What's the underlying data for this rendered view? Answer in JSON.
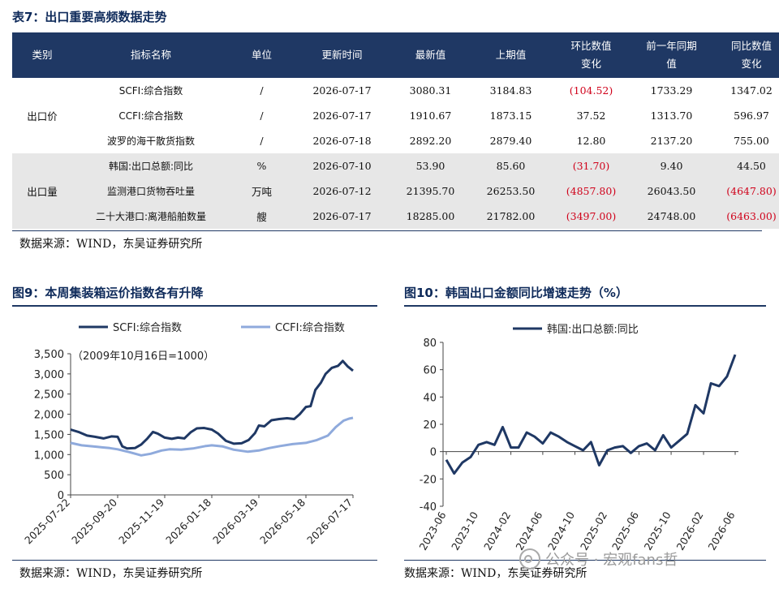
{
  "table7": {
    "title": "表7：出口重要高频数据走势",
    "headers": [
      "类别",
      "指标名称",
      "单位",
      "更新时间",
      "最新值",
      "上期值",
      "环比数值\n变化",
      "前一年同期\n值",
      "同比数值\n变化"
    ],
    "groups": [
      {
        "category": "出口价",
        "rows": [
          {
            "name": "SCFI:综合指数",
            "unit": "/",
            "date": "2026-07-17",
            "latest": "3080.31",
            "prev": "3184.83",
            "mom": "(104.52)",
            "mom_neg": true,
            "year_ago": "1733.29",
            "yoy": "1347.02",
            "yoy_neg": false
          },
          {
            "name": "CCFI:综合指数",
            "unit": "/",
            "date": "2026-07-17",
            "latest": "1910.67",
            "prev": "1873.15",
            "mom": "37.52",
            "mom_neg": false,
            "year_ago": "1313.70",
            "yoy": "596.97",
            "yoy_neg": false
          },
          {
            "name": "波罗的海干散货指数",
            "unit": "/",
            "date": "2026-07-18",
            "latest": "2892.20",
            "prev": "2879.40",
            "mom": "12.80",
            "mom_neg": false,
            "year_ago": "2137.20",
            "yoy": "755.00",
            "yoy_neg": false
          }
        ]
      },
      {
        "category": "出口量",
        "rows": [
          {
            "name": "韩国:出口总额:同比",
            "unit": "%",
            "date": "2026-07-10",
            "latest": "53.90",
            "prev": "85.60",
            "mom": "(31.70)",
            "mom_neg": true,
            "year_ago": "9.40",
            "yoy": "44.50",
            "yoy_neg": false
          },
          {
            "name": "监测港口货物吞吐量",
            "unit": "万吨",
            "date": "2026-07-12",
            "latest": "21395.70",
            "prev": "26253.50",
            "mom": "(4857.80)",
            "mom_neg": true,
            "year_ago": "26043.50",
            "yoy": "(4647.80)",
            "yoy_neg": true
          },
          {
            "name": "二十大港口:离港船舶数量",
            "unit": "艘",
            "date": "2026-07-17",
            "latest": "18285.00",
            "prev": "21782.00",
            "mom": "(3497.00)",
            "mom_neg": true,
            "year_ago": "24748.00",
            "yoy": "(6463.00)",
            "yoy_neg": true
          }
        ]
      }
    ],
    "source": "数据来源：WIND，东吴证券研究所"
  },
  "fig9": {
    "title": "图9：本周集装箱运价指数各有升降",
    "source": "数据来源：WIND，东吴证券研究所"
  },
  "fig10": {
    "title": "图10：韩国出口金额同比增速走势（%）",
    "source": "数据来源：WIND，东吴证券研究所"
  },
  "watermark": "公众号 · 宏观fans哲",
  "colors": {
    "header_bg": "#1f3864",
    "scfi": "#1f3864",
    "ccfi": "#8faadc",
    "negative": "#d0021b",
    "grey_band": "#e7e7e7"
  },
  "chart_data": [
    {
      "type": "line",
      "annotation": "（2009年10月16日=1000）",
      "x_ticks": [
        "2025-07-22",
        "2025-09-20",
        "2025-11-19",
        "2026-01-18",
        "2026-03-19",
        "2026-05-18",
        "2026-07-17"
      ],
      "x_range": [
        "2025-07-22",
        "2026-07-17"
      ],
      "ylim": [
        0,
        3500
      ],
      "y_ticks": [
        0,
        500,
        1000,
        1500,
        2000,
        2500,
        3000,
        3500
      ],
      "y_tick_labels": [
        "0",
        "500",
        "1,000",
        "1,500",
        "2,000",
        "2,500",
        "3,000",
        "3,500"
      ],
      "legend_position": "top",
      "series": [
        {
          "name": "SCFI:综合指数",
          "color": "#1f3864",
          "points": [
            [
              "2025-07-22",
              1620
            ],
            [
              "2025-08-01",
              1560
            ],
            [
              "2025-08-12",
              1470
            ],
            [
              "2025-08-22",
              1440
            ],
            [
              "2025-09-02",
              1400
            ],
            [
              "2025-09-12",
              1450
            ],
            [
              "2025-09-20",
              1440
            ],
            [
              "2025-09-26",
              1200
            ],
            [
              "2025-10-02",
              1150
            ],
            [
              "2025-10-12",
              1160
            ],
            [
              "2025-10-20",
              1250
            ],
            [
              "2025-10-28",
              1400
            ],
            [
              "2025-11-04",
              1560
            ],
            [
              "2025-11-10",
              1520
            ],
            [
              "2025-11-19",
              1420
            ],
            [
              "2025-11-28",
              1390
            ],
            [
              "2025-12-06",
              1420
            ],
            [
              "2025-12-14",
              1400
            ],
            [
              "2025-12-22",
              1550
            ],
            [
              "2025-12-30",
              1650
            ],
            [
              "2026-01-08",
              1660
            ],
            [
              "2026-01-18",
              1620
            ],
            [
              "2026-01-26",
              1520
            ],
            [
              "2026-02-05",
              1340
            ],
            [
              "2026-02-15",
              1270
            ],
            [
              "2026-02-25",
              1280
            ],
            [
              "2026-03-06",
              1360
            ],
            [
              "2026-03-14",
              1530
            ],
            [
              "2026-03-19",
              1720
            ],
            [
              "2026-03-26",
              1700
            ],
            [
              "2026-04-04",
              1850
            ],
            [
              "2026-04-14",
              1880
            ],
            [
              "2026-04-24",
              1900
            ],
            [
              "2026-05-03",
              1880
            ],
            [
              "2026-05-10",
              2000
            ],
            [
              "2026-05-18",
              2180
            ],
            [
              "2026-05-24",
              2200
            ],
            [
              "2026-05-30",
              2600
            ],
            [
              "2026-06-06",
              2780
            ],
            [
              "2026-06-12",
              3000
            ],
            [
              "2026-06-20",
              3150
            ],
            [
              "2026-06-28",
              3200
            ],
            [
              "2026-07-04",
              3320
            ],
            [
              "2026-07-10",
              3190
            ],
            [
              "2026-07-17",
              3080
            ]
          ]
        },
        {
          "name": "CCFI:综合指数",
          "color": "#8faadc",
          "points": [
            [
              "2025-07-22",
              1290
            ],
            [
              "2025-08-05",
              1230
            ],
            [
              "2025-08-25",
              1190
            ],
            [
              "2025-09-10",
              1160
            ],
            [
              "2025-09-20",
              1130
            ],
            [
              "2025-10-05",
              1060
            ],
            [
              "2025-10-20",
              980
            ],
            [
              "2025-11-01",
              1020
            ],
            [
              "2025-11-15",
              1100
            ],
            [
              "2025-11-25",
              1130
            ],
            [
              "2025-12-10",
              1120
            ],
            [
              "2025-12-25",
              1150
            ],
            [
              "2026-01-10",
              1210
            ],
            [
              "2026-01-18",
              1230
            ],
            [
              "2026-02-01",
              1200
            ],
            [
              "2026-02-15",
              1120
            ],
            [
              "2026-03-05",
              1070
            ],
            [
              "2026-03-19",
              1100
            ],
            [
              "2026-04-01",
              1160
            ],
            [
              "2026-04-15",
              1210
            ],
            [
              "2026-05-01",
              1260
            ],
            [
              "2026-05-18",
              1290
            ],
            [
              "2026-06-01",
              1360
            ],
            [
              "2026-06-15",
              1470
            ],
            [
              "2026-06-25",
              1680
            ],
            [
              "2026-07-05",
              1840
            ],
            [
              "2026-07-12",
              1890
            ],
            [
              "2026-07-17",
              1911
            ]
          ]
        }
      ]
    },
    {
      "type": "line",
      "x_ticks": [
        "2023-06",
        "2023-10",
        "2024-02",
        "2024-06",
        "2024-10",
        "2025-02",
        "2025-06",
        "2025-10",
        "2026-02",
        "2026-06"
      ],
      "ylim": [
        -40,
        80
      ],
      "y_ticks": [
        -40,
        -20,
        0,
        20,
        40,
        60,
        80
      ],
      "legend_position": "top",
      "series": [
        {
          "name": "韩国:出口总额:同比",
          "color": "#1f3864",
          "points": [
            [
              "2023-06",
              -6
            ],
            [
              "2023-07",
              -16
            ],
            [
              "2023-08",
              -8
            ],
            [
              "2023-09",
              -4
            ],
            [
              "2023-10",
              5
            ],
            [
              "2023-11",
              7
            ],
            [
              "2023-12",
              5
            ],
            [
              "2024-01",
              18
            ],
            [
              "2024-02",
              3
            ],
            [
              "2024-03",
              3
            ],
            [
              "2024-04",
              14
            ],
            [
              "2024-05",
              11
            ],
            [
              "2024-06",
              6
            ],
            [
              "2024-07",
              14
            ],
            [
              "2024-08",
              11
            ],
            [
              "2024-09",
              7
            ],
            [
              "2024-10",
              4
            ],
            [
              "2024-11",
              1
            ],
            [
              "2024-12",
              7
            ],
            [
              "2025-01",
              -10
            ],
            [
              "2025-02",
              1
            ],
            [
              "2025-03",
              3
            ],
            [
              "2025-04",
              4
            ],
            [
              "2025-05",
              -1
            ],
            [
              "2025-06",
              4
            ],
            [
              "2025-07",
              6
            ],
            [
              "2025-08",
              1
            ],
            [
              "2025-09",
              12
            ],
            [
              "2025-10",
              3
            ],
            [
              "2025-11",
              8
            ],
            [
              "2025-12",
              13
            ],
            [
              "2026-01",
              34
            ],
            [
              "2026-02",
              28
            ],
            [
              "2026-03",
              50
            ],
            [
              "2026-04",
              48
            ],
            [
              "2026-05",
              55
            ],
            [
              "2026-06",
              71
            ]
          ]
        }
      ]
    }
  ]
}
